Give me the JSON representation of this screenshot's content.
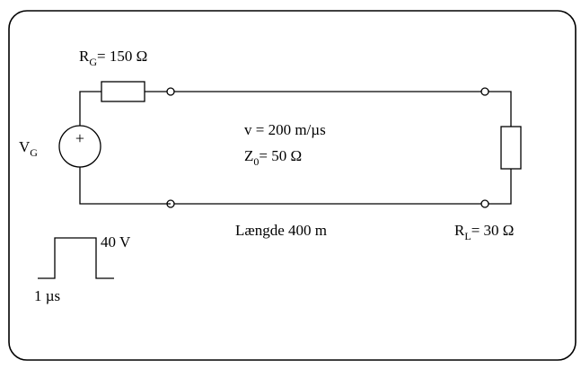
{
  "generator": {
    "label": "V",
    "label_sub": "G",
    "polarity_symbol": "+",
    "pulse": {
      "amplitude_label": "40 V",
      "duration_label": "1 µs"
    }
  },
  "source_resistor": {
    "label": "R",
    "label_sub": "G",
    "value_text": "= 150 Ω"
  },
  "transmission_line": {
    "velocity_text": "v = 200 m/µs",
    "impedance_label": "Z",
    "impedance_sub": "0",
    "impedance_value_text": "= 50 Ω",
    "length_text": "Længde 400 m"
  },
  "load_resistor": {
    "label": "R",
    "label_sub": "L",
    "value_text": "= 30 Ω"
  }
}
